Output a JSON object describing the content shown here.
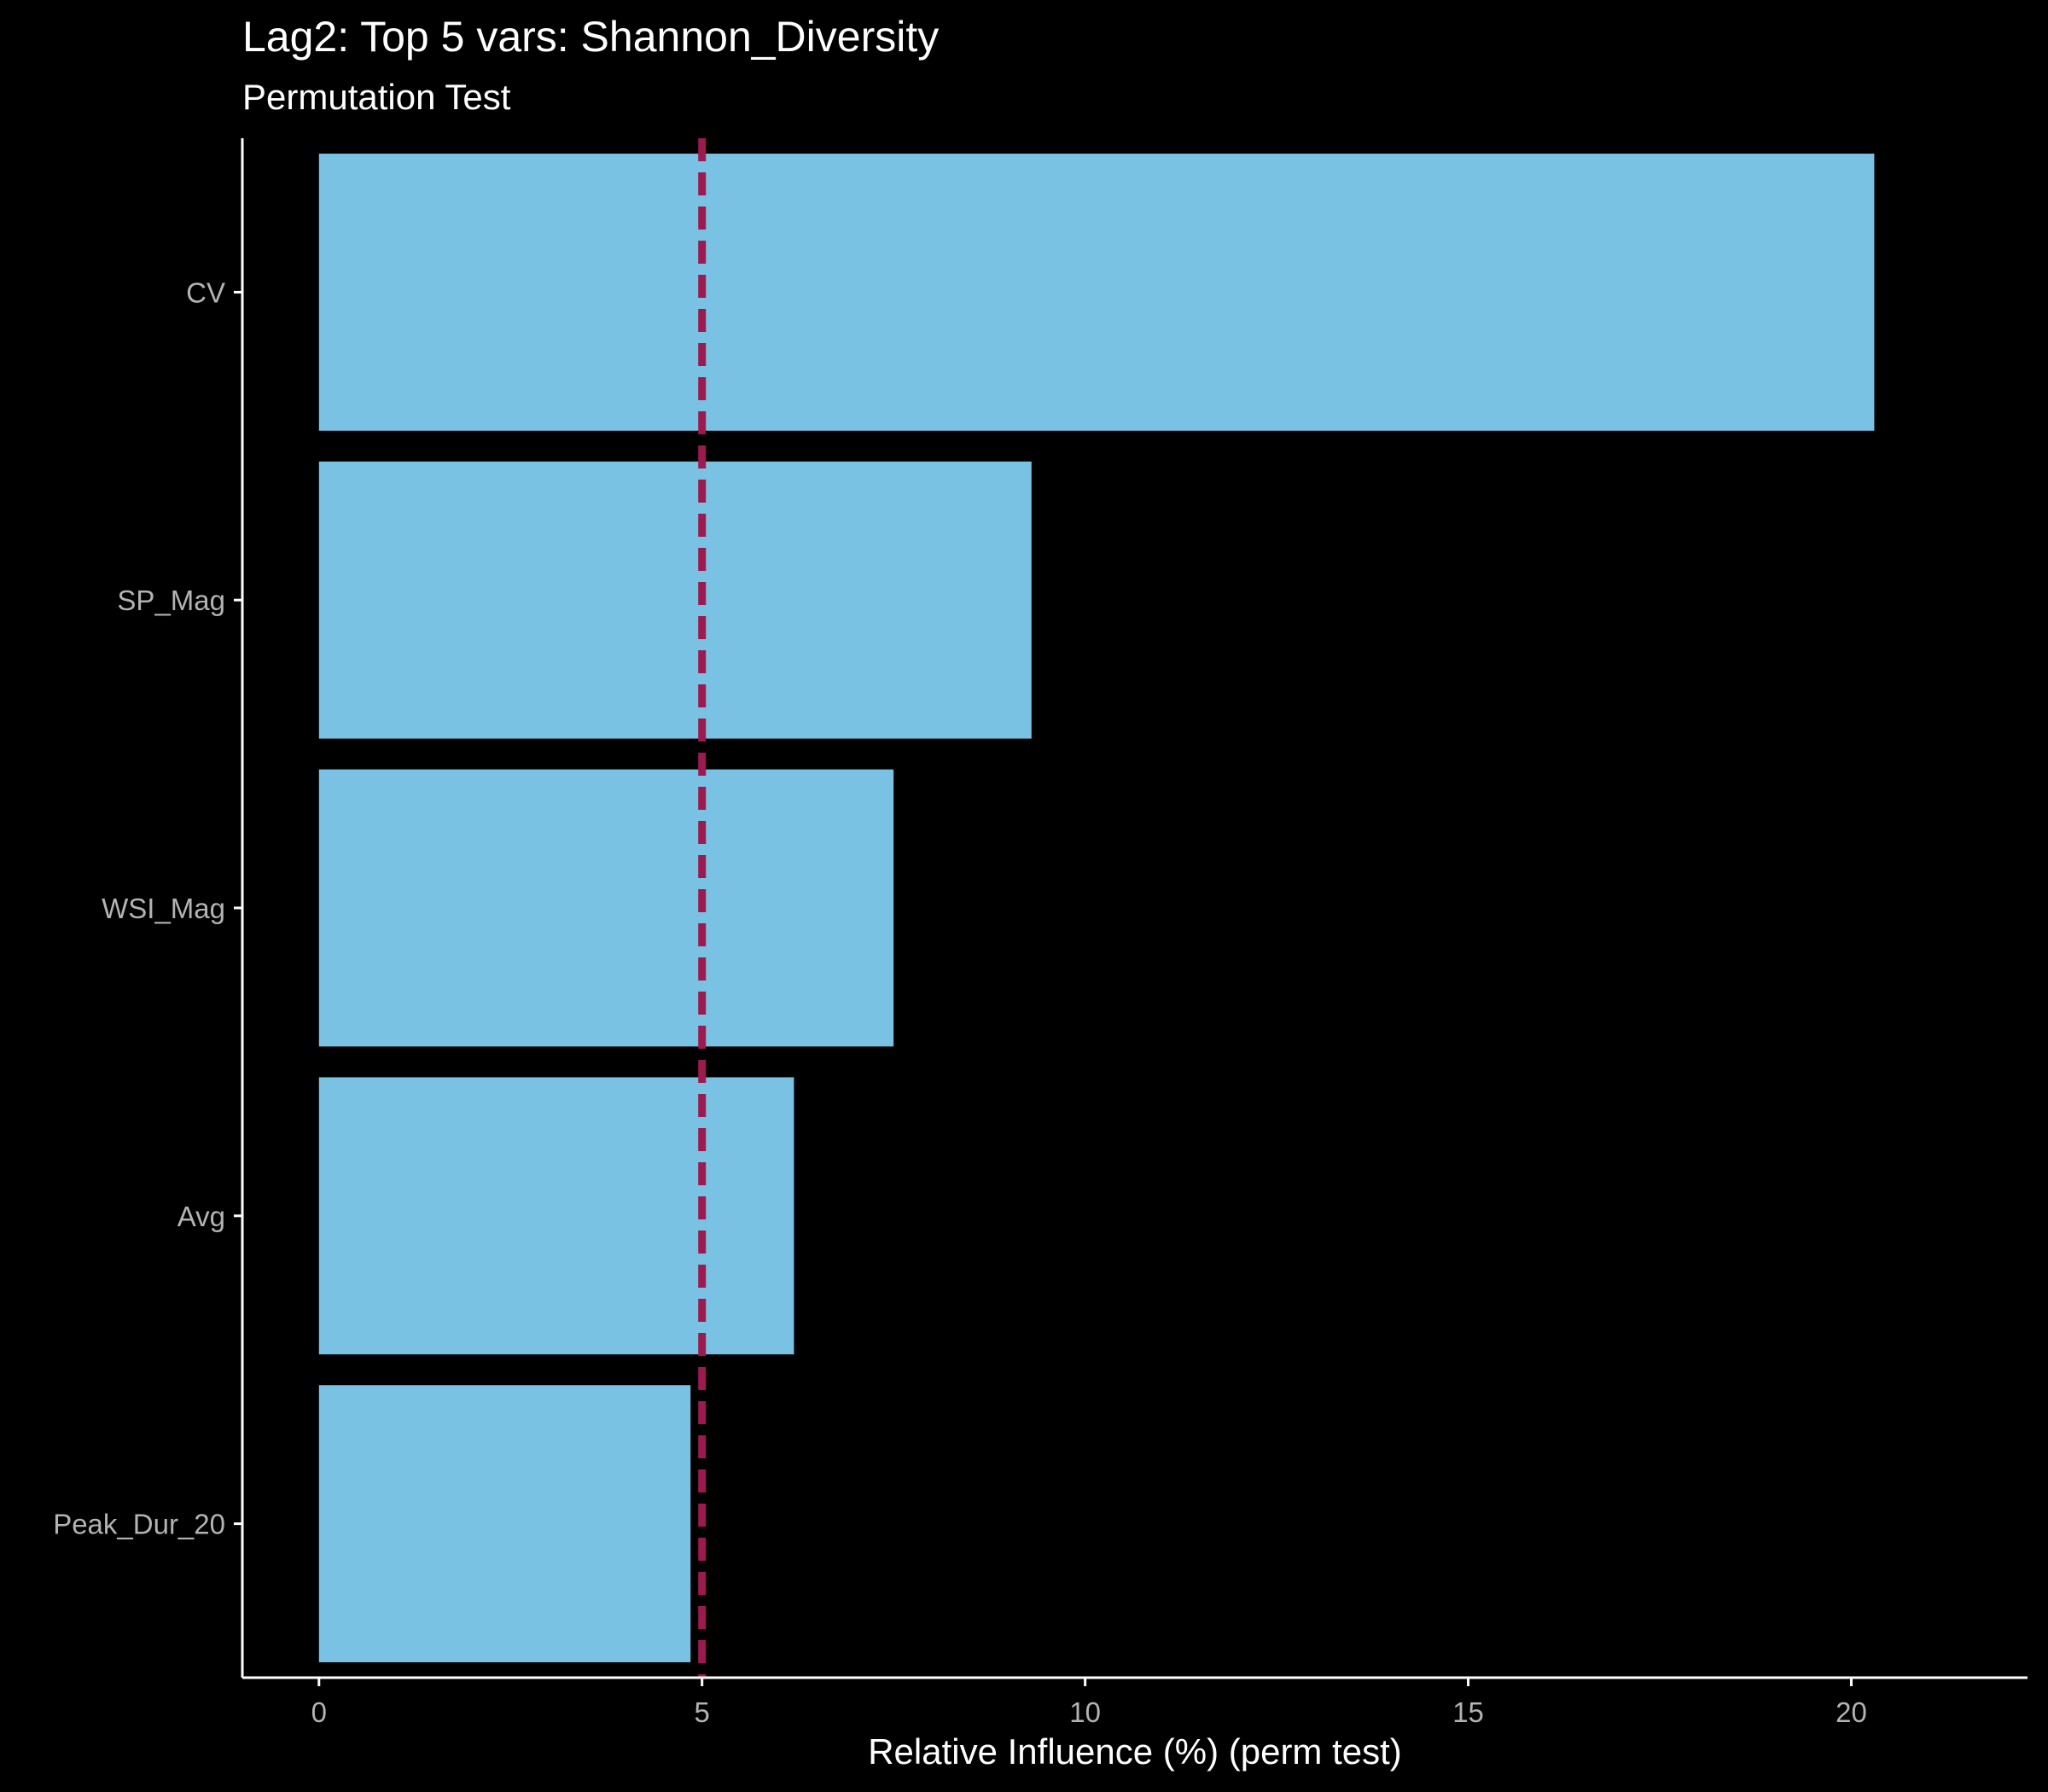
{
  "chart_data": {
    "type": "bar",
    "orientation": "horizontal",
    "title": "Lag2: Top 5 vars: Shannon_Diversity",
    "subtitle": "Permutation Test",
    "xlabel": "Relative Influence (%) (perm test)",
    "ylabel": "",
    "categories": [
      "CV",
      "SP_Mag",
      "WSI_Mag",
      "Avg",
      "Peak_Dur_20"
    ],
    "values": [
      20.3,
      9.3,
      7.5,
      6.2,
      4.85
    ],
    "xlim": [
      -1,
      22.3
    ],
    "x_ticks": [
      0,
      5,
      10,
      15,
      20
    ],
    "x_tick_labels": [
      "0",
      "5",
      "10",
      "15",
      "20"
    ],
    "reference_line": {
      "x": 5,
      "style": "dashed",
      "color": "#9b1b4e"
    },
    "bar_color": "#79c2e4",
    "background_color": "#000000",
    "grid": false,
    "legend": "none"
  }
}
